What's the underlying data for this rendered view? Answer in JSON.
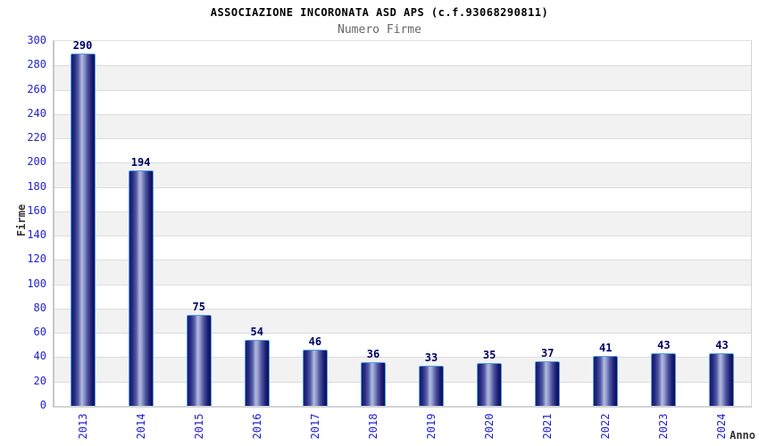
{
  "chart_data": {
    "type": "bar",
    "title": "ASSOCIAZIONE INCORONATA ASD APS (c.f.93068290811)",
    "subtitle": "Numero Firme",
    "xlabel": "Anno",
    "ylabel": "Firme",
    "categories": [
      "2013",
      "2014",
      "2015",
      "2016",
      "2017",
      "2018",
      "2019",
      "2020",
      "2021",
      "2022",
      "2023",
      "2024"
    ],
    "values": [
      290,
      194,
      75,
      54,
      46,
      36,
      33,
      35,
      37,
      41,
      43,
      43
    ],
    "ylim": [
      0,
      300
    ],
    "ytick_step": 20,
    "grid": true,
    "legend": "none",
    "colors": {
      "bar_edge": "#4e9ce8",
      "bar_dark": "#1a1a78",
      "bar_highlight": "#b4bade",
      "tick_label": "#2222cc",
      "value_label": "#000066",
      "title": "#000000",
      "subtitle": "#666666",
      "axis_label": "#333333",
      "band_gray": "#f2f2f2",
      "band_white": "#ffffff",
      "gridline": "#dcdcdc",
      "axis_line": "#c8c8c8",
      "background": "#ffffff"
    }
  }
}
